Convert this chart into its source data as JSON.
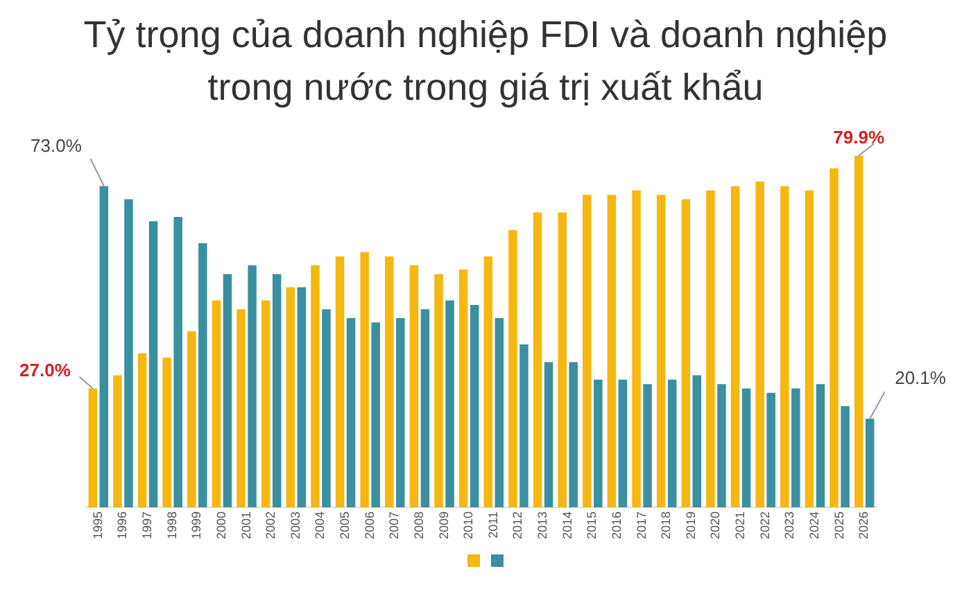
{
  "chart_data": {
    "type": "bar",
    "title": "Tỷ trọng của doanh nghiệp FDI và doanh nghiệp trong nước trong giá trị xuất khẩu",
    "categories": [
      "1995",
      "1996",
      "1997",
      "1998",
      "1999",
      "2000",
      "2001",
      "2002",
      "2003",
      "2004",
      "2005",
      "2006",
      "2007",
      "2008",
      "2009",
      "2010",
      "2011",
      "2012",
      "2013",
      "2014",
      "2015",
      "2016",
      "2017",
      "2018",
      "2019",
      "2020",
      "2021",
      "2022",
      "2023",
      "2024",
      "2025",
      "2026"
    ],
    "series": [
      {
        "color": "#f5b710",
        "values": [
          27.0,
          30,
          35,
          34,
          40,
          47,
          45,
          47,
          50,
          55,
          57,
          58,
          57,
          55,
          53,
          54,
          57,
          63,
          67,
          67,
          71,
          71,
          72,
          71,
          70,
          72,
          73,
          74,
          73,
          72,
          77,
          79.9
        ],
        "value_labels": [
          "27.0%",
          null,
          null,
          null,
          null,
          null,
          null,
          null,
          null,
          null,
          null,
          null,
          null,
          null,
          null,
          null,
          null,
          null,
          null,
          null,
          null,
          null,
          null,
          null,
          null,
          null,
          null,
          null,
          null,
          null,
          null,
          "79.9%"
        ]
      },
      {
        "color": "#3a8fa0",
        "values": [
          73.0,
          70,
          65,
          66,
          60,
          53,
          55,
          53,
          50,
          45,
          43,
          42,
          43,
          45,
          47,
          46,
          43,
          37,
          33,
          33,
          29,
          29,
          28,
          29,
          30,
          28,
          27,
          26,
          27,
          28,
          23,
          20.1
        ],
        "value_labels": [
          "73.0%",
          null,
          null,
          null,
          null,
          null,
          null,
          null,
          null,
          null,
          null,
          null,
          null,
          null,
          null,
          null,
          null,
          null,
          null,
          null,
          null,
          null,
          null,
          null,
          null,
          null,
          null,
          null,
          null,
          null,
          null,
          "20.1%"
        ]
      }
    ],
    "ylim": [
      0,
      80
    ],
    "grid": false
  }
}
